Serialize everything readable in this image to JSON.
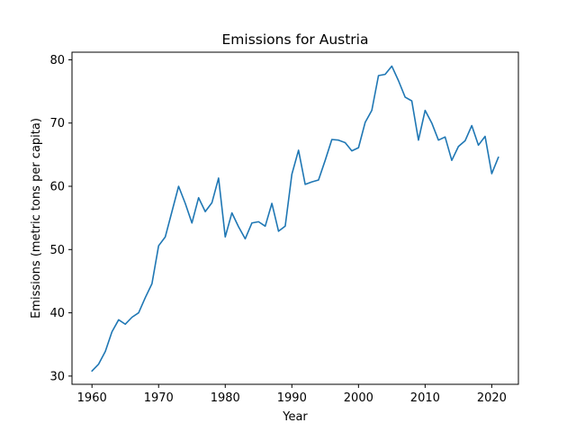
{
  "chart_data": {
    "type": "line",
    "title": "Emissions for Austria",
    "xlabel": "Year",
    "ylabel": "Emissions (metric tons per capita)",
    "xlim": [
      1957,
      2024
    ],
    "ylim": [
      28.7,
      81.2
    ],
    "xticks": [
      1960,
      1970,
      1980,
      1990,
      2000,
      2010,
      2020
    ],
    "yticks": [
      30,
      40,
      50,
      60,
      70,
      80
    ],
    "grid": false,
    "legend": "none",
    "series": [
      {
        "color": "#1f77b4",
        "x": [
          1960,
          1961,
          1962,
          1963,
          1964,
          1965,
          1966,
          1967,
          1968,
          1969,
          1970,
          1971,
          1972,
          1973,
          1974,
          1975,
          1976,
          1977,
          1978,
          1979,
          1980,
          1981,
          1982,
          1983,
          1984,
          1985,
          1986,
          1987,
          1988,
          1989,
          1990,
          1991,
          1992,
          1993,
          1994,
          1995,
          1996,
          1997,
          1998,
          1999,
          2000,
          2001,
          2002,
          2003,
          2004,
          2005,
          2006,
          2007,
          2008,
          2009,
          2010,
          2011,
          2012,
          2013,
          2014,
          2015,
          2016,
          2017,
          2018,
          2019,
          2020,
          2021
        ],
        "y": [
          30.8,
          31.9,
          33.9,
          37.0,
          38.9,
          38.2,
          39.3,
          40.0,
          42.4,
          44.6,
          50.6,
          52.0,
          56.0,
          60.0,
          57.3,
          54.2,
          58.2,
          56.0,
          57.4,
          61.3,
          52.0,
          55.8,
          53.6,
          51.7,
          54.2,
          54.4,
          53.7,
          57.3,
          52.9,
          53.7,
          61.9,
          65.7,
          60.3,
          60.7,
          61.0,
          64.1,
          67.4,
          67.3,
          66.9,
          65.6,
          66.1,
          70.1,
          72.0,
          77.5,
          77.7,
          79.0,
          76.7,
          74.1,
          73.5,
          67.3,
          72.0,
          70.0,
          67.3,
          67.8,
          64.1,
          66.3,
          67.2,
          69.6,
          66.5,
          67.9,
          62.0,
          64.6
        ]
      }
    ]
  }
}
